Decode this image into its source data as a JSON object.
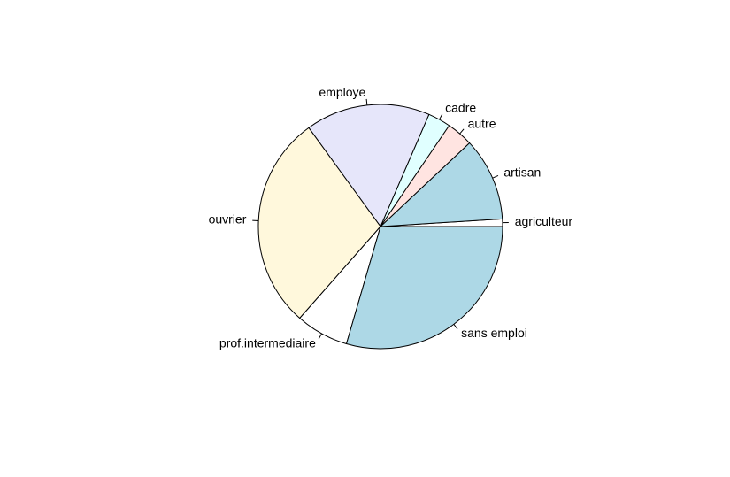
{
  "chart_data": {
    "type": "pie",
    "start_angle_deg": 0,
    "direction": "counterclockwise",
    "border_color": "#000000",
    "slices": [
      {
        "label": "agriculteur",
        "value": 1.0,
        "color": "#ffffff"
      },
      {
        "label": "artisan",
        "value": 11.0,
        "color": "#add8e6"
      },
      {
        "label": "autre",
        "value": 3.5,
        "color": "#ffe4e1"
      },
      {
        "label": "cadre",
        "value": 3.0,
        "color": "#e0ffff"
      },
      {
        "label": "employe",
        "value": 16.5,
        "color": "#e6e6fa"
      },
      {
        "label": "ouvrier",
        "value": 28.5,
        "color": "#fff8dc"
      },
      {
        "label": "prof.intermediaire",
        "value": 7.0,
        "color": "#ffffff"
      },
      {
        "label": "sans emploi",
        "value": 29.5,
        "color": "#add8e6"
      }
    ]
  }
}
